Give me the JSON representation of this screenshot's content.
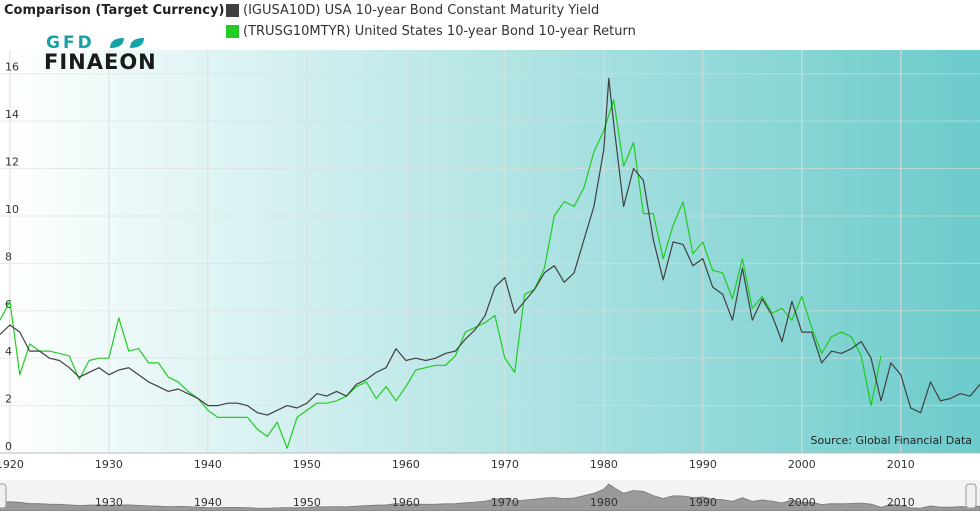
{
  "legend": {
    "title": "Comparison (Target Currency)",
    "series": [
      {
        "label": "(IGUSA10D) USA 10-year Bond Constant Maturity Yield",
        "color": "#404040"
      },
      {
        "label": "(TRUSG10MTYR) United States 10-year Bond 10-year Return",
        "color": "#22cc22"
      }
    ]
  },
  "logo": {
    "line1": "GFD",
    "line2": "FINAEON"
  },
  "source": "Source: Global Financial Data",
  "colors": {
    "background_left": "#ffffff",
    "background_right": "#6ccbcb",
    "grid": "#dddddd",
    "navigator_fill": "#9a9a9a"
  },
  "chart_data": {
    "type": "line",
    "xlim": [
      1919,
      2018
    ],
    "ylim": [
      0,
      17
    ],
    "x_ticks": [
      1920,
      1930,
      1940,
      1950,
      1960,
      1970,
      1980,
      1990,
      2000,
      2010
    ],
    "x_tick_labels": [
      "1920",
      "1930",
      "1940",
      "1950",
      "1960",
      "1970",
      "1980",
      "1990",
      "2000",
      "2010"
    ],
    "y_ticks": [
      0,
      2,
      4,
      6,
      8,
      10,
      12,
      14,
      16
    ],
    "y_tick_labels": [
      "0",
      "2",
      "4",
      "6",
      "8",
      "10",
      "12",
      "14",
      "16"
    ],
    "grid": true,
    "legend_position": "top-left",
    "series": [
      {
        "name": "(IGUSA10D) USA 10-year Bond Constant Maturity Yield",
        "color": "#404040",
        "x": [
          1919,
          1920,
          1921,
          1922,
          1923,
          1924,
          1925,
          1926,
          1927,
          1928,
          1929,
          1930,
          1931,
          1932,
          1933,
          1934,
          1935,
          1936,
          1937,
          1938,
          1939,
          1940,
          1941,
          1942,
          1943,
          1944,
          1945,
          1946,
          1947,
          1948,
          1949,
          1950,
          1951,
          1952,
          1953,
          1954,
          1955,
          1956,
          1957,
          1958,
          1959,
          1960,
          1961,
          1962,
          1963,
          1964,
          1965,
          1966,
          1967,
          1968,
          1969,
          1970,
          1971,
          1972,
          1973,
          1974,
          1975,
          1976,
          1977,
          1978,
          1979,
          1980,
          1980.5,
          1981,
          1982,
          1983,
          1984,
          1985,
          1986,
          1987,
          1988,
          1989,
          1990,
          1991,
          1992,
          1993,
          1994,
          1995,
          1996,
          1997,
          1998,
          1999,
          2000,
          2001,
          2002,
          2003,
          2004,
          2005,
          2006,
          2007,
          2008,
          2009,
          2010,
          2011,
          2012,
          2013,
          2014,
          2015,
          2016,
          2017,
          2018
        ],
        "y": [
          5.0,
          5.4,
          5.1,
          4.3,
          4.3,
          4.0,
          3.9,
          3.6,
          3.2,
          3.4,
          3.6,
          3.3,
          3.5,
          3.6,
          3.3,
          3.0,
          2.8,
          2.6,
          2.7,
          2.5,
          2.3,
          2.0,
          2.0,
          2.1,
          2.1,
          2.0,
          1.7,
          1.6,
          1.8,
          2.0,
          1.9,
          2.1,
          2.5,
          2.4,
          2.6,
          2.4,
          2.9,
          3.1,
          3.4,
          3.6,
          4.4,
          3.9,
          4.0,
          3.9,
          4.0,
          4.2,
          4.3,
          4.8,
          5.2,
          5.8,
          7.0,
          7.4,
          5.9,
          6.4,
          6.9,
          7.6,
          7.9,
          7.2,
          7.6,
          9.0,
          10.4,
          12.8,
          15.8,
          13.9,
          10.4,
          12.0,
          11.5,
          9.0,
          7.3,
          8.9,
          8.8,
          7.9,
          8.2,
          7.0,
          6.7,
          5.6,
          7.8,
          5.6,
          6.5,
          5.8,
          4.7,
          6.4,
          5.1,
          5.1,
          3.8,
          4.3,
          4.2,
          4.4,
          4.7,
          4.0,
          2.2,
          3.8,
          3.3,
          1.9,
          1.7,
          3.0,
          2.2,
          2.3,
          2.5,
          2.4,
          2.9
        ]
      },
      {
        "name": "(TRUSG10MTYR) United States 10-year Bond 10-year Return",
        "color": "#22cc22",
        "x": [
          1919,
          1920,
          1921,
          1922,
          1923,
          1924,
          1925,
          1926,
          1927,
          1928,
          1929,
          1930,
          1931,
          1932,
          1933,
          1934,
          1935,
          1936,
          1937,
          1938,
          1939,
          1940,
          1941,
          1942,
          1943,
          1944,
          1945,
          1946,
          1947,
          1948,
          1949,
          1950,
          1951,
          1952,
          1953,
          1954,
          1955,
          1956,
          1957,
          1958,
          1959,
          1960,
          1961,
          1962,
          1963,
          1964,
          1965,
          1966,
          1967,
          1968,
          1969,
          1970,
          1971,
          1972,
          1973,
          1974,
          1975,
          1976,
          1977,
          1978,
          1979,
          1980,
          1981,
          1982,
          1983,
          1984,
          1985,
          1986,
          1987,
          1988,
          1989,
          1990,
          1991,
          1992,
          1993,
          1994,
          1995,
          1996,
          1997,
          1998,
          1999,
          2000,
          2001,
          2002,
          2003,
          2004,
          2005,
          2006,
          2007,
          2008
        ],
        "y": [
          5.6,
          6.4,
          3.3,
          4.6,
          4.3,
          4.3,
          4.2,
          4.1,
          3.1,
          3.9,
          4.0,
          4.0,
          5.7,
          4.3,
          4.4,
          3.8,
          3.8,
          3.2,
          3.0,
          2.6,
          2.3,
          1.8,
          1.5,
          1.5,
          1.5,
          1.5,
          1.0,
          0.7,
          1.3,
          0.2,
          1.5,
          1.8,
          2.1,
          2.1,
          2.2,
          2.4,
          2.8,
          3.0,
          2.3,
          2.8,
          2.2,
          2.8,
          3.5,
          3.6,
          3.7,
          3.7,
          4.1,
          5.1,
          5.3,
          5.5,
          5.8,
          4.0,
          3.4,
          6.7,
          6.9,
          7.8,
          10.0,
          10.6,
          10.4,
          11.2,
          12.7,
          13.6,
          14.9,
          12.1,
          13.1,
          10.1,
          10.1,
          8.2,
          9.6,
          10.6,
          8.4,
          8.9,
          7.7,
          7.6,
          6.5,
          8.2,
          6.1,
          6.6,
          5.9,
          6.1,
          5.6,
          6.6,
          5.3,
          4.2,
          4.9,
          5.1,
          4.9,
          4.1,
          2.0,
          4.1
        ]
      }
    ]
  }
}
